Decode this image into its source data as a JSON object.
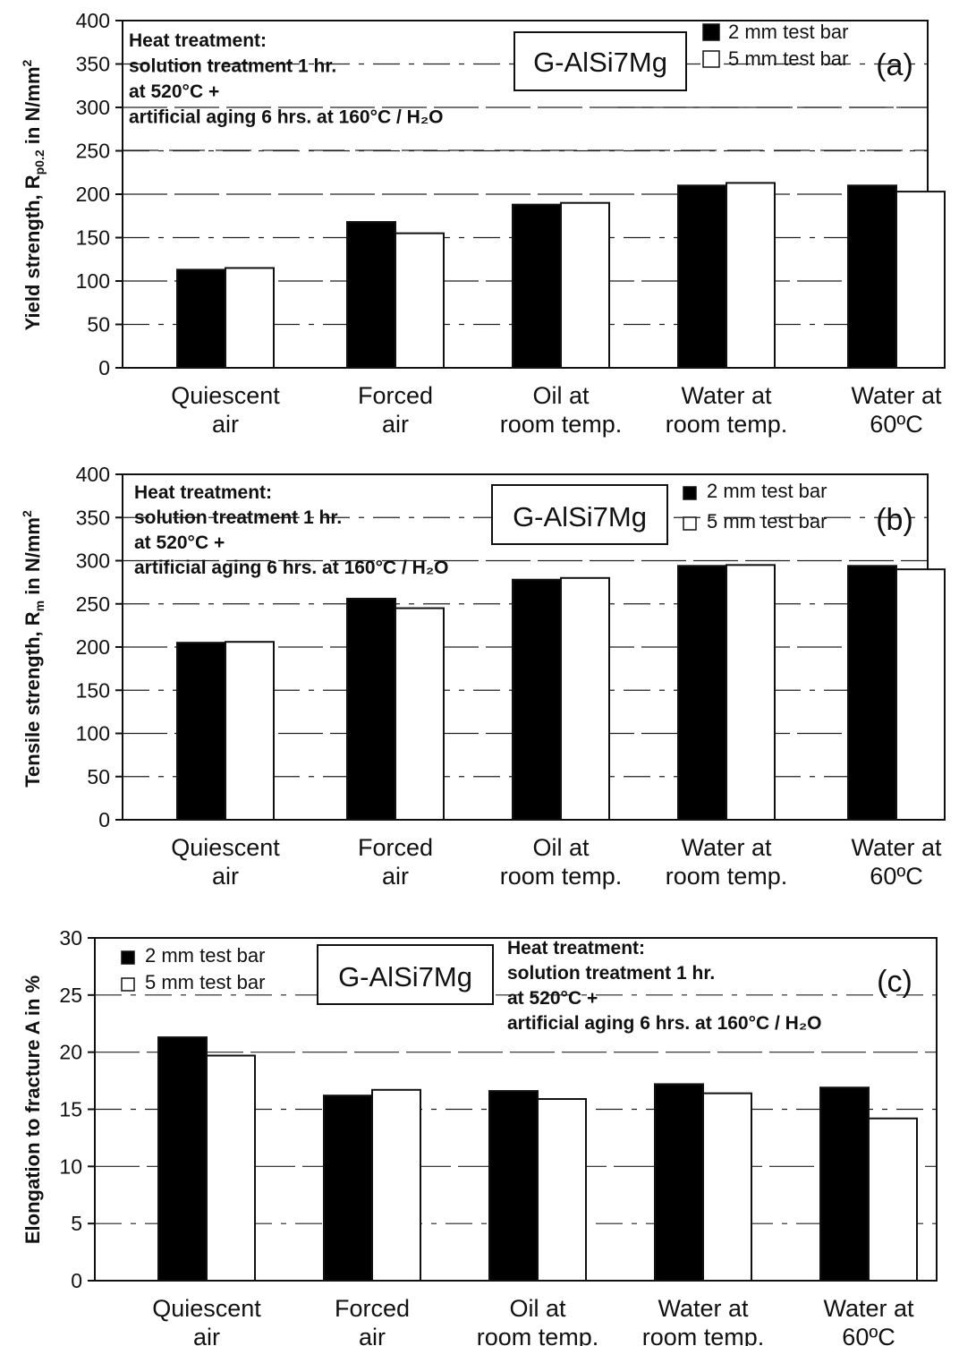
{
  "chart_data": [
    {
      "type": "bar",
      "panel_label": "(a)",
      "ylabel": "Yield strength, R_p0.2 in N/mm²",
      "ylabel_parts": {
        "main": "Yield strength, R",
        "sub": "p0.2",
        "mid": " in N/mm",
        "sup": "2"
      },
      "ylim": [
        0,
        400
      ],
      "yticks": [
        0,
        50,
        100,
        150,
        200,
        250,
        300,
        350,
        400
      ],
      "categories": [
        [
          "Quiescent",
          "air"
        ],
        [
          "Forced",
          "air"
        ],
        [
          "Oil at",
          "room temp."
        ],
        [
          "Water at",
          "room temp."
        ],
        [
          "Water at",
          "60ºC"
        ]
      ],
      "series": [
        {
          "name": "2 mm test bar",
          "color": "#000000",
          "values": [
            113,
            168,
            188,
            210,
            210
          ]
        },
        {
          "name": "5 mm test bar",
          "color": "#ffffff",
          "values": [
            115,
            155,
            190,
            213,
            203
          ]
        }
      ],
      "alloy": "G-AlSi7Mg",
      "legend_placement": "top-right",
      "grid": true,
      "heat_treatment": [
        "Heat treatment:",
        "solution treatment 1 hr.",
        "at 520°C +",
        "artificial aging 6 hrs. at  160°C / H₂O"
      ]
    },
    {
      "type": "bar",
      "panel_label": "(b)",
      "ylabel": "Tensile strength, R_m in N/mm²",
      "ylabel_parts": {
        "main": "Tensile strength, R",
        "sub": "m",
        "mid": " in N/mm",
        "sup": "2"
      },
      "ylim": [
        0,
        400
      ],
      "yticks": [
        0,
        50,
        100,
        150,
        200,
        250,
        300,
        350,
        400
      ],
      "categories": [
        [
          "Quiescent",
          "air"
        ],
        [
          "Forced",
          "air"
        ],
        [
          "Oil at",
          "room temp."
        ],
        [
          "Water at",
          "room temp."
        ],
        [
          "Water at",
          "60ºC"
        ]
      ],
      "series": [
        {
          "name": "2 mm test bar",
          "color": "#000000",
          "values": [
            205,
            256,
            278,
            294,
            294
          ]
        },
        {
          "name": "5 mm test bar",
          "color": "#ffffff",
          "values": [
            206,
            245,
            280,
            295,
            290
          ]
        }
      ],
      "alloy": "G-AlSi7Mg",
      "legend_placement": "top-right",
      "grid": true,
      "heat_treatment": [
        "Heat treatment:",
        "solution treatment 1 hr.",
        "at 520°C +",
        "artificial aging 6 hrs. at  160°C / H₂O"
      ]
    },
    {
      "type": "bar",
      "panel_label": "(c)",
      "ylabel": "Elongation to fracture A in %",
      "ylabel_parts": {
        "main": "Elongation to fracture A in %",
        "sub": "",
        "mid": "",
        "sup": ""
      },
      "ylim": [
        0,
        30
      ],
      "yticks": [
        0,
        5,
        10,
        15,
        20,
        25,
        30
      ],
      "categories": [
        [
          "Quiescent",
          "air"
        ],
        [
          "Forced",
          "air"
        ],
        [
          "Oil at",
          "room temp."
        ],
        [
          "Water at",
          "room temp."
        ],
        [
          "Water at",
          "60ºC"
        ]
      ],
      "series": [
        {
          "name": "2 mm test bar",
          "color": "#000000",
          "values": [
            21.3,
            16.2,
            16.6,
            17.2,
            16.9
          ]
        },
        {
          "name": "5 mm test bar",
          "color": "#ffffff",
          "values": [
            19.7,
            16.7,
            15.9,
            16.4,
            14.2
          ]
        }
      ],
      "alloy": "G-AlSi7Mg",
      "legend_placement": "top-left",
      "grid": true,
      "heat_treatment": [
        "Heat treatment:",
        "solution treatment 1 hr.",
        "at 520°C +",
        "artificial aging 6 hrs. at  160°C / H₂O"
      ]
    }
  ]
}
